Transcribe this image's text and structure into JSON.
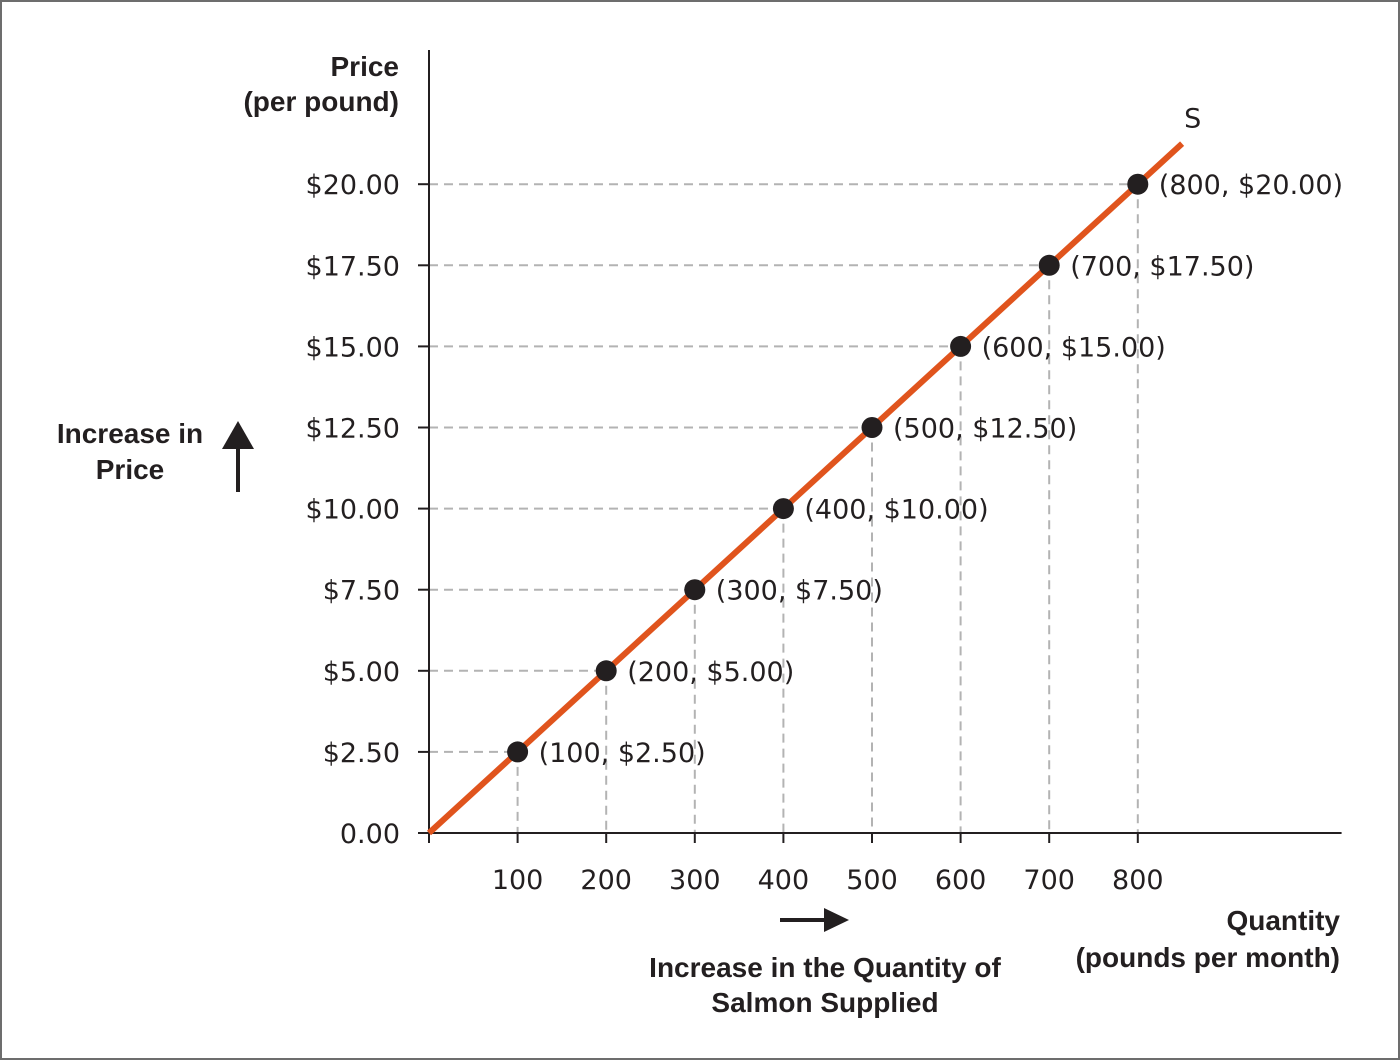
{
  "chart_data": {
    "type": "line",
    "y_title_lines": [
      "Price",
      "(per pound)"
    ],
    "x_title_lines": [
      "Quantity",
      "(pounds per month)"
    ],
    "y_annotation_lines": [
      "Increase in",
      "Price"
    ],
    "x_annotation_lines": [
      "Increase in the Quantity of",
      "Salmon Supplied"
    ],
    "y_tick_labels": [
      "0.00",
      "$2.50",
      "$5.00",
      "$7.50",
      "$10.00",
      "$12.50",
      "$15.00",
      "$17.50",
      "$20.00"
    ],
    "y_ticks": [
      0,
      2.5,
      5,
      7.5,
      10,
      12.5,
      15,
      17.5,
      20
    ],
    "x_ticks": [
      100,
      200,
      300,
      400,
      500,
      600,
      700,
      800
    ],
    "xlim": [
      0,
      1030
    ],
    "ylim": [
      0,
      20
    ],
    "grid": "dashed guide lines from each point to both axes",
    "series": [
      {
        "name": "S",
        "color": "#e0541d",
        "x": [
          100,
          200,
          300,
          400,
          500,
          600,
          700,
          800
        ],
        "y": [
          2.5,
          5.0,
          7.5,
          10.0,
          12.5,
          15.0,
          17.5,
          20.0
        ],
        "point_labels": [
          "(100, $2.50)",
          "(200, $5.00)",
          "(300, $7.50)",
          "(400, $10.00)",
          "(500, $12.50)",
          "(600, $15.00)",
          "(700, $17.50)",
          "(800, $20.00)"
        ]
      }
    ],
    "colors": {
      "axis": "#231f20",
      "guide": "#b3b3b3",
      "point": "#231f20",
      "text": "#231f20"
    }
  }
}
